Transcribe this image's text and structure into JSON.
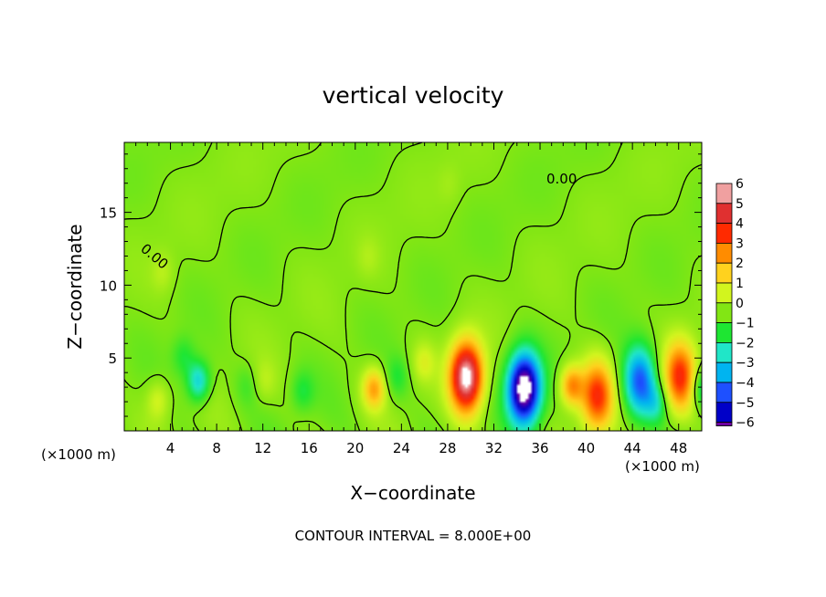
{
  "chart_data": {
    "type": "heatmap",
    "title": "vertical velocity",
    "xlabel": "X−coordinate",
    "ylabel": "Z−coordinate",
    "x_unit_left": "(×1000 m)",
    "x_unit_right": "(×1000 m)",
    "footer": "CONTOUR INTERVAL = 8.000E+00",
    "contour_label": "0.00",
    "xlim": [
      0,
      50
    ],
    "ylim": [
      0,
      19.8
    ],
    "x_ticks": [
      4,
      8,
      12,
      16,
      20,
      24,
      28,
      32,
      36,
      40,
      44,
      48
    ],
    "x_tick_labels": [
      "4",
      "8",
      "12",
      "16",
      "20",
      "24",
      "28",
      "32",
      "36",
      "40",
      "44",
      "48"
    ],
    "y_ticks": [
      5,
      10,
      15
    ],
    "y_tick_labels": [
      "5",
      "10",
      "15"
    ],
    "colorbar": {
      "levels": [
        6,
        5,
        4,
        3,
        2,
        1,
        0,
        -1,
        -2,
        -3,
        -4,
        -5,
        -6
      ],
      "labels": [
        "6",
        "5",
        "4",
        "3",
        "2",
        "1",
        "0",
        "−1",
        "−2",
        "−3",
        "−4",
        "−5",
        "−6"
      ],
      "colors": [
        "#f0a0a0",
        "#e03030",
        "#ff2a00",
        "#ff8c00",
        "#ffd21e",
        "#d2f51e",
        "#82e614",
        "#1ee632",
        "#20e6c8",
        "#00b4f0",
        "#1e50ff",
        "#0000c8",
        "#6e00a0"
      ]
    },
    "features": [
      {
        "x": 2.8,
        "z": 2.2,
        "w": 1.1
      },
      {
        "x": 6.3,
        "z": 3.5,
        "w": -2.5
      },
      {
        "x": 5.0,
        "z": 5.2,
        "w": -1.0
      },
      {
        "x": 3.2,
        "z": 11.0,
        "w": 0.6
      },
      {
        "x": 10.5,
        "z": 3.2,
        "w": -0.6
      },
      {
        "x": 12.0,
        "z": 3.5,
        "w": 0.6
      },
      {
        "x": 15.3,
        "z": 2.8,
        "w": -1.0
      },
      {
        "x": 21.5,
        "z": 3.0,
        "w": 2.6
      },
      {
        "x": 23.5,
        "z": 3.8,
        "w": -0.9
      },
      {
        "x": 25.8,
        "z": 4.8,
        "w": 1.0
      },
      {
        "x": 29.5,
        "z": 3.8,
        "w": 6.5
      },
      {
        "x": 34.5,
        "z": 3.0,
        "w": -7.0
      },
      {
        "x": 38.6,
        "z": 3.2,
        "w": 3.0
      },
      {
        "x": 40.8,
        "z": 2.5,
        "w": 4.0
      },
      {
        "x": 44.5,
        "z": 3.5,
        "w": -4.0
      },
      {
        "x": 46.0,
        "z": 2.0,
        "w": -1.5
      },
      {
        "x": 48.0,
        "z": 3.8,
        "w": 4.0
      },
      {
        "x": 50.0,
        "z": 3.0,
        "w": -2.0
      },
      {
        "x": 21.0,
        "z": 12.0,
        "w": 0.4
      },
      {
        "x": 28.0,
        "z": 17.0,
        "w": 0.3
      }
    ]
  }
}
